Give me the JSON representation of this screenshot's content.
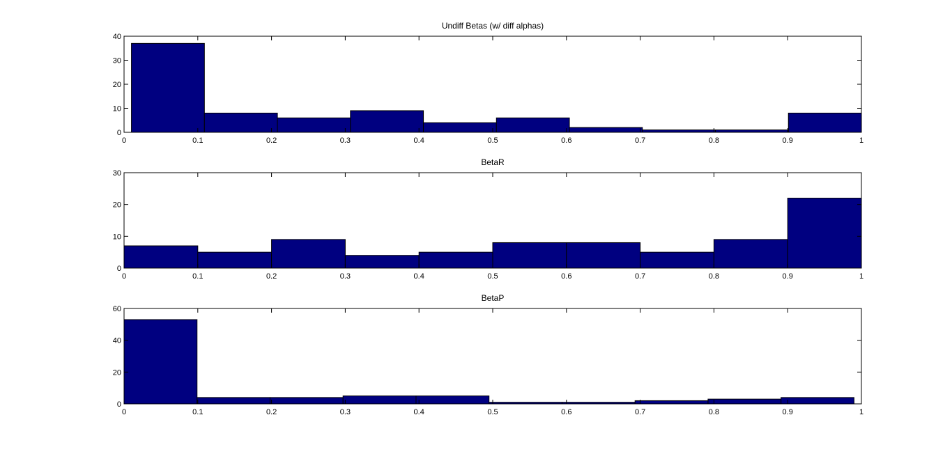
{
  "colors": {
    "bar_fill": "#000080",
    "bar_stroke": "#000000",
    "axes": "#000000",
    "background": "#ffffff"
  },
  "chart_data": [
    {
      "type": "bar",
      "title": "Undiff Betas (w/ diff alphas)",
      "xlabel": "",
      "ylabel": "",
      "xlim": [
        0,
        1
      ],
      "ylim": [
        0,
        40
      ],
      "xticks": [
        "0",
        "0.1",
        "0.2",
        "0.3",
        "0.4",
        "0.5",
        "0.6",
        "0.7",
        "0.8",
        "0.9",
        "1"
      ],
      "yticks": [
        "0",
        "10",
        "20",
        "30",
        "40"
      ],
      "grid": false,
      "bins": [
        {
          "start": 0.01,
          "end": 0.109,
          "value": 37
        },
        {
          "start": 0.109,
          "end": 0.208,
          "value": 8
        },
        {
          "start": 0.208,
          "end": 0.307,
          "value": 6
        },
        {
          "start": 0.307,
          "end": 0.406,
          "value": 9
        },
        {
          "start": 0.406,
          "end": 0.505,
          "value": 4
        },
        {
          "start": 0.505,
          "end": 0.604,
          "value": 6
        },
        {
          "start": 0.604,
          "end": 0.703,
          "value": 2
        },
        {
          "start": 0.703,
          "end": 0.802,
          "value": 1
        },
        {
          "start": 0.802,
          "end": 0.901,
          "value": 1
        },
        {
          "start": 0.901,
          "end": 1.0,
          "value": 8
        }
      ]
    },
    {
      "type": "bar",
      "title": "BetaR",
      "xlabel": "",
      "ylabel": "",
      "xlim": [
        0,
        1
      ],
      "ylim": [
        0,
        30
      ],
      "xticks": [
        "0",
        "0.1",
        "0.2",
        "0.3",
        "0.4",
        "0.5",
        "0.6",
        "0.7",
        "0.8",
        "0.9",
        "1"
      ],
      "yticks": [
        "0",
        "10",
        "20",
        "30"
      ],
      "grid": false,
      "bins": [
        {
          "start": 0.0,
          "end": 0.1,
          "value": 7
        },
        {
          "start": 0.1,
          "end": 0.2,
          "value": 5
        },
        {
          "start": 0.2,
          "end": 0.3,
          "value": 9
        },
        {
          "start": 0.3,
          "end": 0.4,
          "value": 4
        },
        {
          "start": 0.4,
          "end": 0.5,
          "value": 5
        },
        {
          "start": 0.5,
          "end": 0.6,
          "value": 8
        },
        {
          "start": 0.6,
          "end": 0.7,
          "value": 8
        },
        {
          "start": 0.7,
          "end": 0.8,
          "value": 5
        },
        {
          "start": 0.8,
          "end": 0.9,
          "value": 9
        },
        {
          "start": 0.9,
          "end": 1.0,
          "value": 22
        }
      ]
    },
    {
      "type": "bar",
      "title": "BetaP",
      "xlabel": "",
      "ylabel": "",
      "xlim": [
        0,
        1
      ],
      "ylim": [
        0,
        60
      ],
      "xticks": [
        "0",
        "0.1",
        "0.2",
        "0.3",
        "0.4",
        "0.5",
        "0.6",
        "0.7",
        "0.8",
        "0.9",
        "1"
      ],
      "yticks": [
        "0",
        "20",
        "40",
        "60"
      ],
      "grid": false,
      "bins": [
        {
          "start": 0.0,
          "end": 0.099,
          "value": 53
        },
        {
          "start": 0.099,
          "end": 0.198,
          "value": 4
        },
        {
          "start": 0.198,
          "end": 0.297,
          "value": 4
        },
        {
          "start": 0.297,
          "end": 0.396,
          "value": 5
        },
        {
          "start": 0.396,
          "end": 0.495,
          "value": 5
        },
        {
          "start": 0.495,
          "end": 0.594,
          "value": 1
        },
        {
          "start": 0.594,
          "end": 0.693,
          "value": 1
        },
        {
          "start": 0.693,
          "end": 0.792,
          "value": 2
        },
        {
          "start": 0.792,
          "end": 0.891,
          "value": 3
        },
        {
          "start": 0.891,
          "end": 0.99,
          "value": 4
        }
      ]
    }
  ]
}
